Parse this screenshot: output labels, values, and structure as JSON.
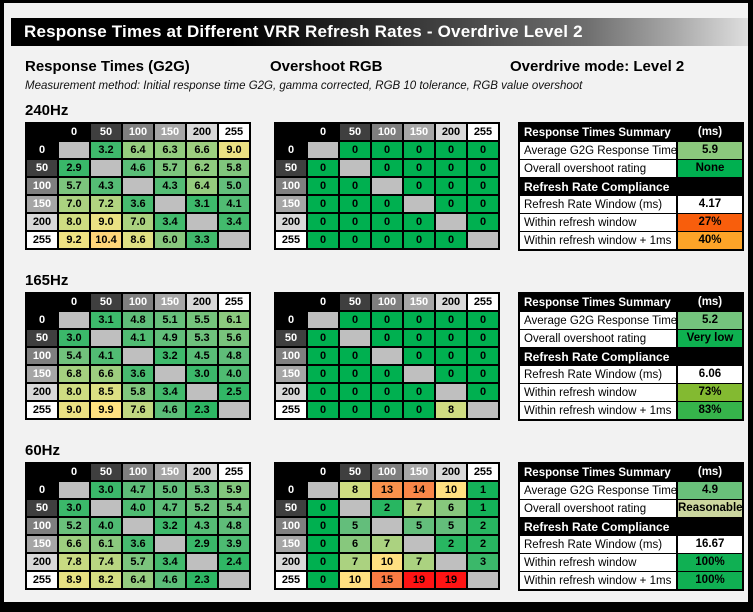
{
  "page": {
    "title": "Response Times at Different VRR Refresh Rates - Overdrive Level 2",
    "section_headers": [
      "Response Times (G2G)",
      "Overshoot RGB",
      "Overdrive mode: Level 2"
    ],
    "subtitle": "Measurement method: Initial response time G2G, gamma corrected, RGB 10 tolerance, RGB value overshoot"
  },
  "chart_data": {
    "type": "heatmap",
    "title": "Response Times at Different VRR Refresh Rates - Overdrive Level 2",
    "overdrive_mode": "Level 2",
    "axis_values": [
      "0",
      "50",
      "100",
      "150",
      "200",
      "255"
    ],
    "header_shades": [
      {
        "bg": "#000000",
        "fg": "#FFFFFF"
      },
      {
        "bg": "#3F3F3F",
        "fg": "#FFFFFF"
      },
      {
        "bg": "#7F7F7F",
        "fg": "#FFFFFF"
      },
      {
        "bg": "#A6A6A6",
        "fg": "#FFFFFF"
      },
      {
        "bg": "#D9D9D9",
        "fg": "#000000"
      },
      {
        "bg": "#FFFFFF",
        "fg": "#000000"
      }
    ],
    "color_scale": {
      "empty": "#BFBFBF",
      "anchors": [
        [
          0,
          "#00B050"
        ],
        [
          5,
          "#63BE7B"
        ],
        [
          8,
          "#CFDC82"
        ],
        [
          9.8,
          "#FFE584"
        ],
        [
          13,
          "#F9914C"
        ],
        [
          15,
          "#F97B43"
        ],
        [
          19,
          "#FE1414"
        ],
        [
          25,
          "#C00000"
        ]
      ]
    },
    "sections": [
      {
        "label": "240Hz",
        "g2g": [
          [
            null,
            3.2,
            6.4,
            6.3,
            6.6,
            9.0
          ],
          [
            2.9,
            null,
            4.6,
            5.7,
            6.2,
            5.8
          ],
          [
            5.7,
            4.3,
            null,
            4.3,
            6.4,
            5.0
          ],
          [
            7.0,
            7.2,
            3.6,
            null,
            3.1,
            4.1
          ],
          [
            8.0,
            9.0,
            7.0,
            3.4,
            null,
            3.4
          ],
          [
            9.2,
            10.4,
            8.6,
            6.0,
            3.3,
            null
          ]
        ],
        "overshoot": [
          [
            null,
            0,
            0,
            0,
            0,
            0
          ],
          [
            0,
            null,
            0,
            0,
            0,
            0
          ],
          [
            0,
            0,
            null,
            0,
            0,
            0
          ],
          [
            0,
            0,
            0,
            null,
            0,
            0
          ],
          [
            0,
            0,
            0,
            0,
            null,
            0
          ],
          [
            0,
            0,
            0,
            0,
            0,
            null
          ]
        ],
        "summary": {
          "header": "Response Times Summary",
          "unit": "(ms)",
          "rows": [
            {
              "label": "Average G2G Response Time",
              "value": "5.9",
              "color": "#8BC87D"
            },
            {
              "label": "Overall overshoot rating",
              "value": "None",
              "color": "#00B050"
            }
          ],
          "compliance_header": "Refresh Rate Compliance",
          "compliance_rows": [
            {
              "label": "Refresh Rate Window (ms)",
              "value": "4.17",
              "color": "#FFFFFF"
            },
            {
              "label": "Within refresh window",
              "value": "27%",
              "color": "#F85E0C"
            },
            {
              "label": "Within refresh window + 1ms",
              "value": "40%",
              "color": "#FDA428"
            }
          ]
        }
      },
      {
        "label": "165Hz",
        "g2g": [
          [
            null,
            3.1,
            4.8,
            5.1,
            5.5,
            6.1
          ],
          [
            3.0,
            null,
            4.1,
            4.9,
            5.3,
            5.6
          ],
          [
            5.4,
            4.1,
            null,
            3.2,
            4.5,
            4.8
          ],
          [
            6.8,
            6.6,
            3.6,
            null,
            3.0,
            4.0
          ],
          [
            8.0,
            8.5,
            5.8,
            3.4,
            null,
            2.5
          ],
          [
            9.0,
            9.9,
            7.6,
            4.6,
            2.3,
            null
          ]
        ],
        "overshoot": [
          [
            null,
            0,
            0,
            0,
            0,
            0
          ],
          [
            0,
            null,
            0,
            0,
            0,
            0
          ],
          [
            0,
            0,
            null,
            0,
            0,
            0
          ],
          [
            0,
            0,
            0,
            null,
            0,
            0
          ],
          [
            0,
            0,
            0,
            0,
            null,
            0
          ],
          [
            0,
            0,
            0,
            0,
            8,
            null
          ]
        ],
        "summary": {
          "header": "Response Times Summary",
          "unit": "(ms)",
          "rows": [
            {
              "label": "Average G2G Response Time",
              "value": "5.2",
              "color": "#74C47D"
            },
            {
              "label": "Overall overshoot rating",
              "value": "Very low",
              "color": "#0EB150"
            }
          ],
          "compliance_header": "Refresh Rate Compliance",
          "compliance_rows": [
            {
              "label": "Refresh Rate Window (ms)",
              "value": "6.06",
              "color": "#FFFFFF"
            },
            {
              "label": "Within refresh window",
              "value": "73%",
              "color": "#83BA31"
            },
            {
              "label": "Within refresh window + 1ms",
              "value": "83%",
              "color": "#36B44B"
            }
          ]
        }
      },
      {
        "label": "60Hz",
        "g2g": [
          [
            null,
            3.0,
            4.7,
            5.0,
            5.3,
            5.9
          ],
          [
            3.0,
            null,
            4.0,
            4.7,
            5.2,
            5.4
          ],
          [
            5.2,
            4.0,
            null,
            3.2,
            4.3,
            4.8
          ],
          [
            6.6,
            6.1,
            3.6,
            null,
            2.9,
            3.9
          ],
          [
            7.8,
            7.4,
            5.7,
            3.4,
            null,
            2.4
          ],
          [
            8.9,
            8.2,
            6.4,
            4.6,
            2.3,
            null
          ]
        ],
        "overshoot": [
          [
            null,
            8,
            13,
            14,
            10,
            1
          ],
          [
            0,
            null,
            2,
            7,
            6,
            1
          ],
          [
            0,
            5,
            null,
            5,
            5,
            2
          ],
          [
            0,
            6,
            7,
            null,
            2,
            2
          ],
          [
            0,
            7,
            10,
            7,
            null,
            3
          ],
          [
            0,
            10,
            15,
            19,
            19,
            null
          ]
        ],
        "summary": {
          "header": "Response Times Summary",
          "unit": "(ms)",
          "rows": [
            {
              "label": "Average G2G Response Time",
              "value": "4.9",
              "color": "#69C07A"
            },
            {
              "label": "Overall overshoot rating",
              "value": "Reasonable",
              "color": "#CBD69F"
            }
          ],
          "compliance_header": "Refresh Rate Compliance",
          "compliance_rows": [
            {
              "label": "Refresh Rate Window (ms)",
              "value": "16.67",
              "color": "#FFFFFF"
            },
            {
              "label": "Within refresh window",
              "value": "100%",
              "color": "#10B053"
            },
            {
              "label": "Within refresh window + 1ms",
              "value": "100%",
              "color": "#10B053"
            }
          ]
        }
      }
    ]
  }
}
